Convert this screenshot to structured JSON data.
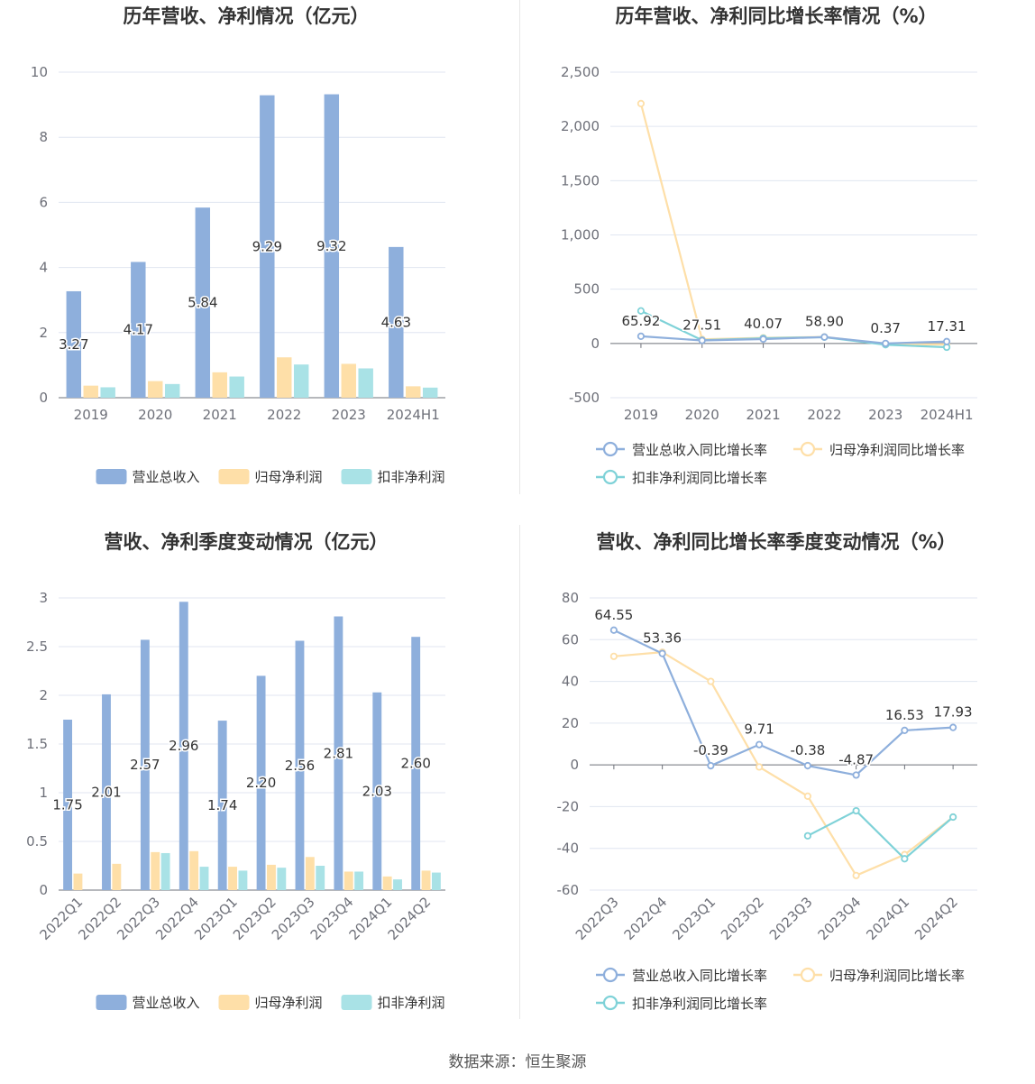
{
  "source": "数据来源：恒生聚源",
  "colors": {
    "revenue": "#8eafdc",
    "net_profit": "#fedfa8",
    "deducted": "#7fd2d8"
  },
  "chart_data": [
    {
      "type": "bar",
      "title": "历年营收、净利情况（亿元）",
      "categories": [
        "2019",
        "2020",
        "2021",
        "2022",
        "2023",
        "2024H1"
      ],
      "ylim": [
        0,
        10
      ],
      "yticks": [
        0,
        2,
        4,
        6,
        8,
        10
      ],
      "grid": true,
      "legend_position": "bottom",
      "series": [
        {
          "name": "营业总收入",
          "values": [
            3.27,
            4.17,
            5.84,
            9.29,
            9.32,
            4.63
          ],
          "labels": [
            "3.27",
            "4.17",
            "5.84",
            "9.29",
            "9.32",
            "4.63"
          ],
          "color": "#8eafdc"
        },
        {
          "name": "归母净利润",
          "values": [
            0.37,
            0.51,
            0.78,
            1.24,
            1.04,
            0.35
          ],
          "color": "#fedfa8"
        },
        {
          "name": "扣非净利润",
          "values": [
            0.32,
            0.42,
            0.65,
            1.02,
            0.9,
            0.31
          ],
          "color": "#a9e2e6"
        }
      ]
    },
    {
      "type": "line",
      "title": "历年营收、净利同比增长率情况（%）",
      "categories": [
        "2019",
        "2020",
        "2021",
        "2022",
        "2023",
        "2024H1"
      ],
      "ylim": [
        -500,
        2500
      ],
      "yticks": [
        -500,
        0,
        500,
        1000,
        1500,
        2000,
        2500
      ],
      "ytick_labels": [
        "-500",
        "0",
        "500",
        "1,000",
        "1,500",
        "2,000",
        "2,500"
      ],
      "grid": true,
      "legend_position": "bottom",
      "series": [
        {
          "name": "营业总收入同比增长率",
          "values": [
            65.92,
            27.51,
            40.07,
            58.9,
            0.37,
            17.31
          ],
          "labels": [
            "65.92",
            "27.51",
            "40.07",
            "58.90",
            "0.37",
            "17.31"
          ],
          "color": "#8eafdc"
        },
        {
          "name": "归母净利润同比增长率",
          "values": [
            2210,
            38,
            52,
            60,
            -5,
            -10
          ],
          "color": "#fedfa8"
        },
        {
          "name": "扣非净利润同比增长率",
          "values": [
            300,
            30,
            48,
            58,
            -12,
            -35
          ],
          "color": "#7fd2d8"
        }
      ]
    },
    {
      "type": "bar",
      "title": "营收、净利季度变动情况（亿元）",
      "categories": [
        "2022Q1",
        "2022Q2",
        "2022Q3",
        "2022Q4",
        "2023Q1",
        "2023Q2",
        "2023Q3",
        "2023Q4",
        "2024Q1",
        "2024Q2"
      ],
      "ylim": [
        0,
        3
      ],
      "yticks": [
        0,
        0.5,
        1,
        1.5,
        2,
        2.5,
        3
      ],
      "ytick_labels": [
        "0",
        "0.5",
        "1",
        "1.5",
        "2",
        "2.5",
        "3"
      ],
      "grid": true,
      "legend_position": "bottom",
      "series": [
        {
          "name": "营业总收入",
          "values": [
            1.75,
            2.01,
            2.57,
            2.96,
            1.74,
            2.2,
            2.56,
            2.81,
            2.03,
            2.6
          ],
          "labels": [
            "1.75",
            "2.01",
            "2.57",
            "2.96",
            "1.74",
            "2.20",
            "2.56",
            "2.81",
            "2.03",
            "2.60"
          ],
          "color": "#8eafdc"
        },
        {
          "name": "归母净利润",
          "values": [
            0.17,
            0.27,
            0.39,
            0.4,
            0.24,
            0.26,
            0.34,
            0.19,
            0.14,
            0.2
          ],
          "color": "#fedfa8"
        },
        {
          "name": "扣非净利润",
          "values": [
            null,
            null,
            0.38,
            0.24,
            0.2,
            0.23,
            0.25,
            0.19,
            0.11,
            0.18
          ],
          "color": "#a9e2e6"
        }
      ]
    },
    {
      "type": "line",
      "title": "营收、净利同比增长率季度变动情况（%）",
      "categories": [
        "2022Q3",
        "2022Q4",
        "2023Q1",
        "2023Q2",
        "2023Q3",
        "2023Q4",
        "2024Q1",
        "2024Q2"
      ],
      "ylim": [
        -60,
        80
      ],
      "yticks": [
        -60,
        -40,
        -20,
        0,
        20,
        40,
        60,
        80
      ],
      "grid": true,
      "legend_position": "bottom",
      "series": [
        {
          "name": "营业总收入同比增长率",
          "values": [
            64.55,
            53.36,
            -0.39,
            9.71,
            -0.38,
            -4.87,
            16.53,
            17.93
          ],
          "labels": [
            "64.55",
            "53.36",
            "-0.39",
            "9.71",
            "-0.38",
            "-4.87",
            "16.53",
            "17.93"
          ],
          "color": "#8eafdc"
        },
        {
          "name": "归母净利润同比增长率",
          "values": [
            52,
            54,
            40,
            -1,
            -15,
            -53,
            -43,
            -25
          ],
          "color": "#fedfa8"
        },
        {
          "name": "扣非净利润同比增长率",
          "values": [
            null,
            null,
            null,
            null,
            -34,
            -22,
            -45,
            -25
          ],
          "color": "#7fd2d8"
        }
      ]
    }
  ]
}
